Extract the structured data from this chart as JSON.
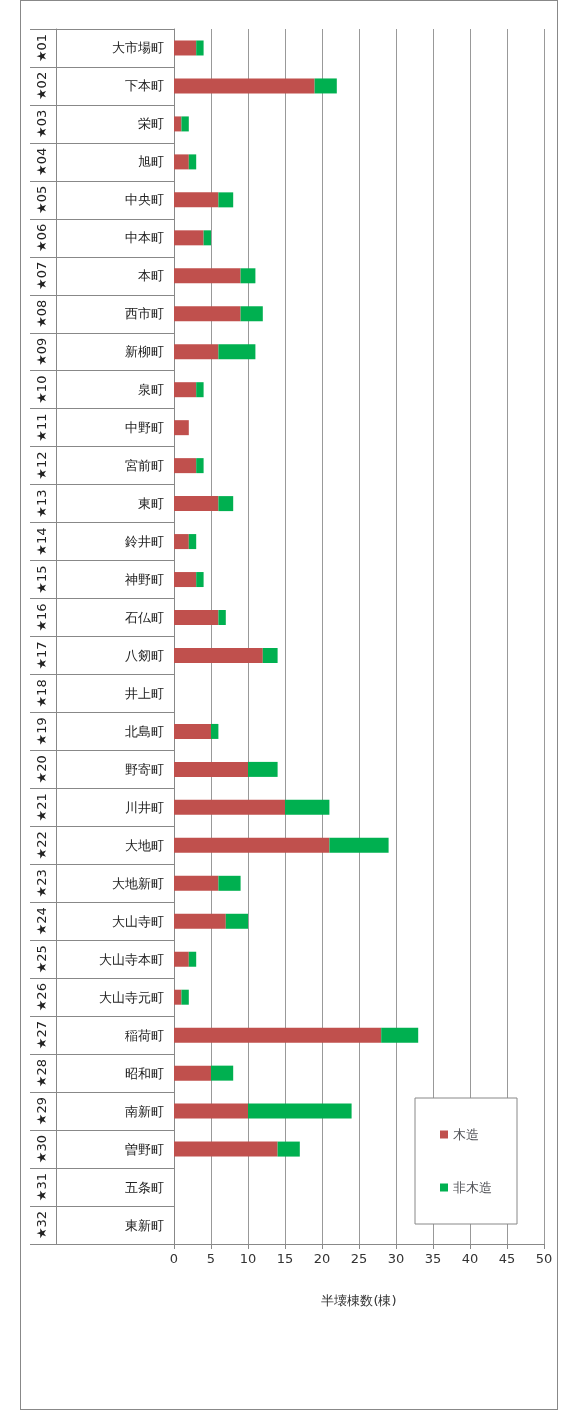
{
  "chart_data": {
    "type": "bar",
    "orientation": "horizontal",
    "stacked": true,
    "xlabel": "半壊棟数(棟)",
    "categories": [
      "大市場町",
      "下本町",
      "栄町",
      "旭町",
      "中央町",
      "中本町",
      "本町",
      "西市町",
      "新柳町",
      "泉町",
      "中野町",
      "宮前町",
      "東町",
      "鈴井町",
      "神野町",
      "石仏町",
      "八剱町",
      "井上町",
      "北島町",
      "野寄町",
      "川井町",
      "大地町",
      "大地新町",
      "大山寺町",
      "大山寺本町",
      "大山寺元町",
      "稲荷町",
      "昭和町",
      "南新町",
      "曽野町",
      "五条町",
      "東新町"
    ],
    "annotations": [
      "★01",
      "★02",
      "★03",
      "★04",
      "★05",
      "★06",
      "★07",
      "★08",
      "★09",
      "★10",
      "★11",
      "★12",
      "★13",
      "★14",
      "★15",
      "★16",
      "★17",
      "★18",
      "★19",
      "★20",
      "★21",
      "★22",
      "★23",
      "★24",
      "★25",
      "★26",
      "★27",
      "★28",
      "★29",
      "★30",
      "★31",
      "★32"
    ],
    "series": [
      {
        "name": "木造",
        "color": "#c0504d",
        "values": [
          3,
          19,
          1,
          2,
          6,
          4,
          9,
          9,
          6,
          3,
          2,
          3,
          6,
          2,
          3,
          6,
          12,
          0,
          5,
          10,
          15,
          21,
          6,
          7,
          2,
          1,
          28,
          5,
          10,
          14,
          0,
          0
        ]
      },
      {
        "name": "非木造",
        "color": "#00b050",
        "values": [
          1,
          3,
          1,
          1,
          2,
          1,
          2,
          3,
          5,
          1,
          0,
          1,
          2,
          1,
          1,
          1,
          2,
          0,
          1,
          4,
          6,
          8,
          3,
          3,
          1,
          1,
          5,
          3,
          14,
          3,
          0,
          0
        ]
      }
    ],
    "xlim": [
      0,
      50
    ],
    "xticks": [
      0,
      5,
      10,
      15,
      20,
      25,
      30,
      35,
      40,
      45,
      50
    ],
    "grid": "x",
    "legend": "bottom right"
  }
}
